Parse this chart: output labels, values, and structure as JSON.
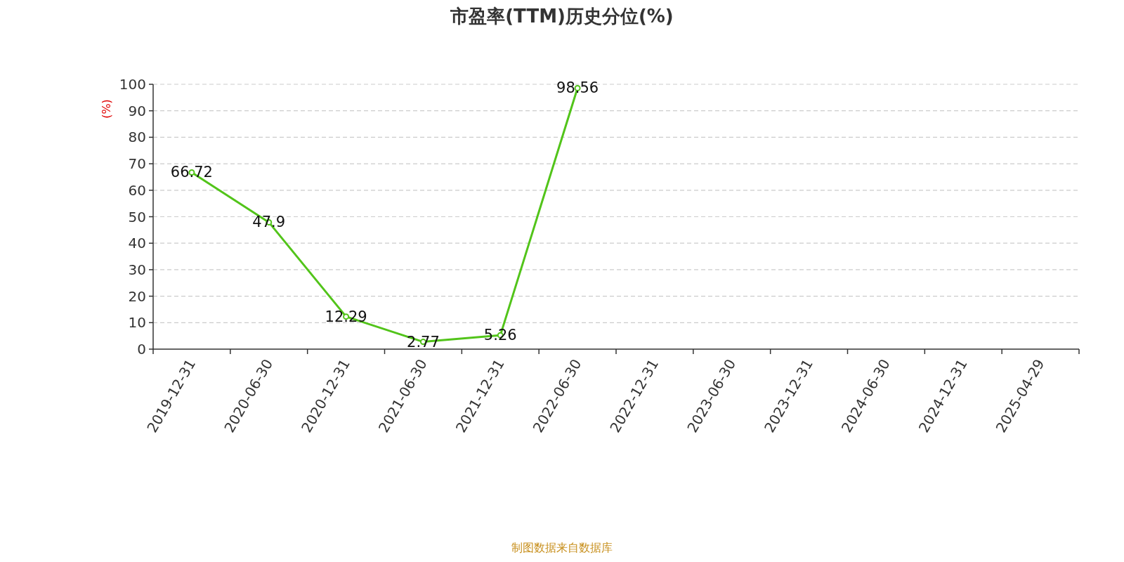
{
  "chart_data": {
    "type": "line",
    "title": "市盈率(TTM)历史分位(%)",
    "ylabel": "(%)",
    "annotations": [
      "制图数据来自数据库"
    ],
    "categories": [
      "2019-12-31",
      "2020-06-30",
      "2020-12-31",
      "2021-06-30",
      "2021-12-31",
      "2022-06-30",
      "2022-12-31",
      "2023-06-30",
      "2023-12-31",
      "2024-06-30",
      "2024-12-31",
      "2025-04-29"
    ],
    "values": [
      66.72,
      47.9,
      12.29,
      2.77,
      5.26,
      98.56,
      null,
      null,
      null,
      null,
      null,
      null
    ],
    "color": "#52c41a",
    "ylim": [
      0,
      100
    ],
    "yticks": [
      0,
      10,
      20,
      30,
      40,
      50,
      60,
      70,
      80,
      90,
      100
    ],
    "grid": "y",
    "marker": "circle",
    "data_labels": true
  }
}
